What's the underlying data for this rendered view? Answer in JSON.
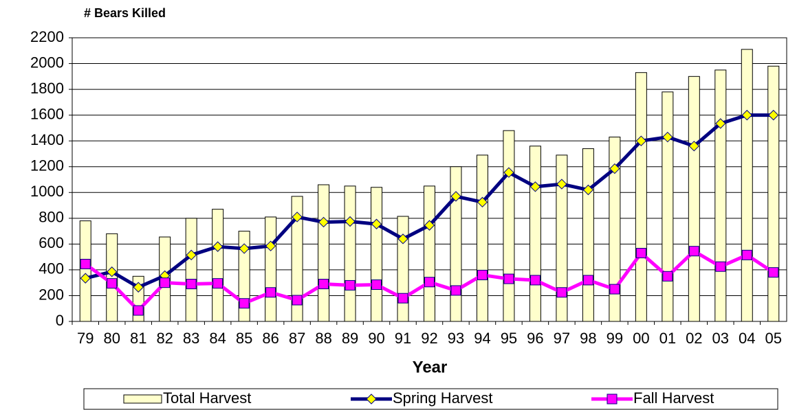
{
  "chart_data": {
    "type": "bar_line",
    "title": "# Bears Killed",
    "x_label": "Year",
    "categories": [
      "79",
      "80",
      "81",
      "82",
      "83",
      "84",
      "85",
      "86",
      "87",
      "88",
      "89",
      "90",
      "91",
      "92",
      "93",
      "94",
      "95",
      "96",
      "97",
      "98",
      "99",
      "00",
      "01",
      "02",
      "03",
      "04",
      "05"
    ],
    "series": [
      {
        "name": "Total Harvest",
        "kind": "bar",
        "color": "#ffffcc",
        "values": [
          780,
          680,
          350,
          655,
          800,
          870,
          700,
          810,
          970,
          1060,
          1050,
          1040,
          815,
          1050,
          1200,
          1290,
          1480,
          1360,
          1290,
          1340,
          1430,
          1930,
          1780,
          1900,
          1950,
          2110,
          1980
        ]
      },
      {
        "name": "Spring Harvest",
        "kind": "line",
        "color": "#000080",
        "marker": "diamond",
        "marker_color": "#ffff00",
        "values": [
          335,
          385,
          265,
          355,
          515,
          580,
          565,
          585,
          810,
          770,
          775,
          755,
          640,
          745,
          970,
          925,
          1155,
          1045,
          1065,
          1020,
          1185,
          1400,
          1430,
          1360,
          1535,
          1600,
          1600
        ]
      },
      {
        "name": "Fall Harvest",
        "kind": "line",
        "color": "#ff00ff",
        "marker": "square",
        "marker_color": "#ff00ff",
        "values": [
          445,
          295,
          85,
          300,
          290,
          295,
          140,
          225,
          165,
          290,
          280,
          285,
          180,
          305,
          240,
          360,
          330,
          320,
          225,
          320,
          250,
          530,
          350,
          545,
          425,
          515,
          380
        ]
      }
    ],
    "ylim": [
      0,
      2200
    ],
    "yticks": [
      0,
      200,
      400,
      600,
      800,
      1000,
      1200,
      1400,
      1600,
      1800,
      2000,
      2200
    ],
    "grid": true,
    "legend": "bottom"
  }
}
